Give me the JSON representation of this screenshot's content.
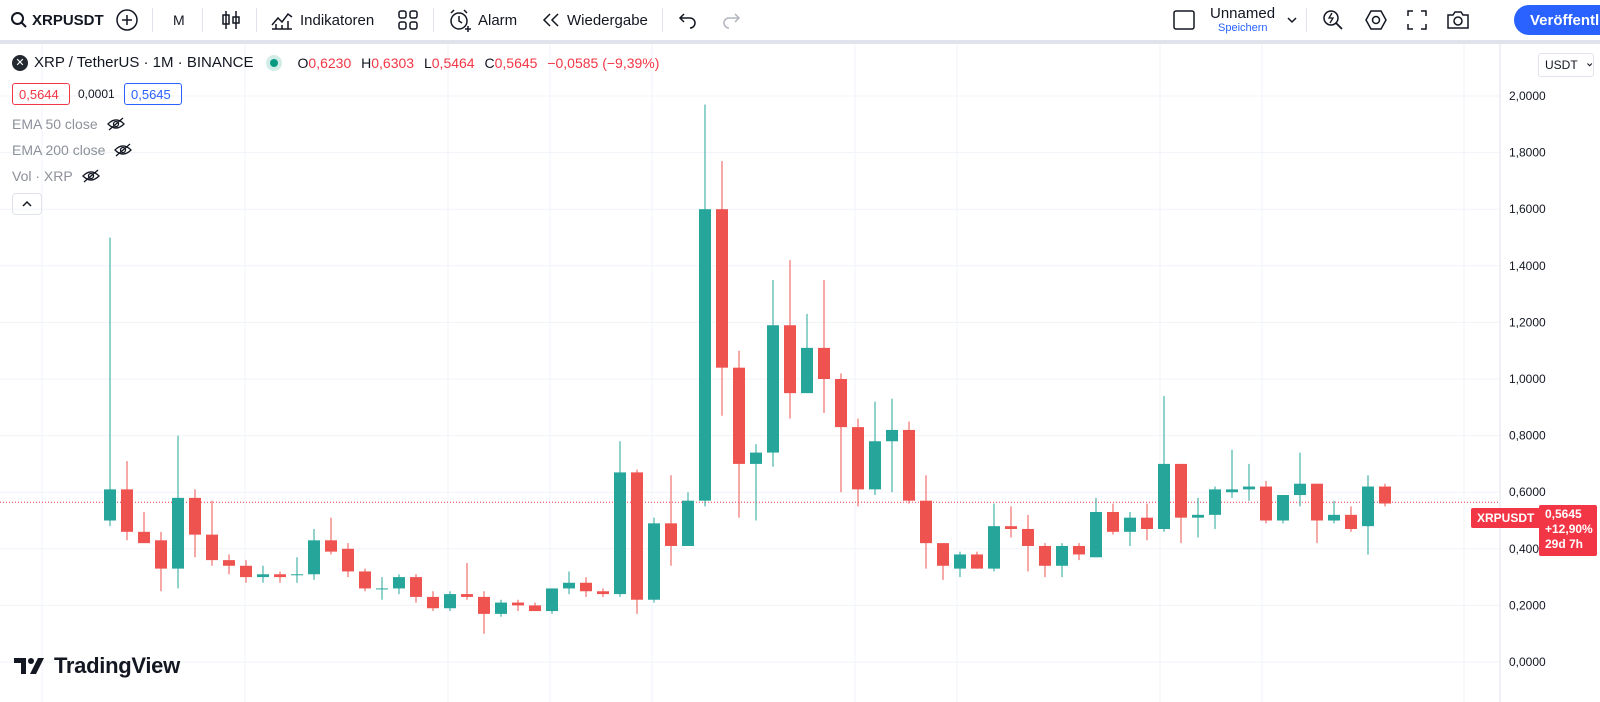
{
  "toolbar": {
    "symbol": "XRPUSDT",
    "interval": "M",
    "indicators_label": "Indikatoren",
    "alarm_label": "Alarm",
    "replay_label": "Wiedergabe",
    "layout_name": "Unnamed",
    "layout_save": "Speichern",
    "publish_label": "Veröffentli"
  },
  "legend": {
    "title": "XRP / TetherUS · 1M · BINANCE",
    "o_label": "O",
    "o_value": "0,6230",
    "h_label": "H",
    "h_value": "0,6303",
    "l_label": "L",
    "l_value": "0,5464",
    "c_label": "C",
    "c_value": "0,5645",
    "change": "−0,0585 (−9,39%)",
    "bid": "0,5644",
    "spread": "0,0001",
    "ask": "0,5645"
  },
  "indicators": [
    {
      "label": "EMA 50 close"
    },
    {
      "label": "EMA 200 close"
    },
    {
      "label": "Vol · XRP"
    }
  ],
  "currency_select": "USDT",
  "watermark": "TradingView",
  "last_price": {
    "symbol": "XRPUSDT",
    "price": "0,5645",
    "change": "+12,90%",
    "countdown": "29d 7h"
  },
  "colors": {
    "up": "#26a69a",
    "down": "#ef5350",
    "accent": "#2962ff"
  },
  "chart_data": {
    "type": "candlestick",
    "y_axis_ticks": [
      "0,0000",
      "0,2000",
      "0,4000",
      "0,6000",
      "0,8000",
      "1,0000",
      "1,2000",
      "1,4000",
      "1,6000",
      "1,8000",
      "2,0000"
    ],
    "ylim": [
      -0.02,
      2.1
    ],
    "last_price_value": 0.5645,
    "candles": [
      {
        "o": 0.5,
        "h": 1.5,
        "l": 0.48,
        "c": 0.61
      },
      {
        "o": 0.61,
        "h": 0.71,
        "l": 0.43,
        "c": 0.46
      },
      {
        "o": 0.46,
        "h": 0.53,
        "l": 0.42,
        "c": 0.42
      },
      {
        "o": 0.43,
        "h": 0.46,
        "l": 0.25,
        "c": 0.33
      },
      {
        "o": 0.33,
        "h": 0.8,
        "l": 0.26,
        "c": 0.58
      },
      {
        "o": 0.58,
        "h": 0.61,
        "l": 0.37,
        "c": 0.45
      },
      {
        "o": 0.45,
        "h": 0.57,
        "l": 0.34,
        "c": 0.36
      },
      {
        "o": 0.36,
        "h": 0.38,
        "l": 0.31,
        "c": 0.34
      },
      {
        "o": 0.34,
        "h": 0.36,
        "l": 0.28,
        "c": 0.3
      },
      {
        "o": 0.3,
        "h": 0.34,
        "l": 0.28,
        "c": 0.31
      },
      {
        "o": 0.31,
        "h": 0.32,
        "l": 0.28,
        "c": 0.3
      },
      {
        "o": 0.31,
        "h": 0.37,
        "l": 0.28,
        "c": 0.31
      },
      {
        "o": 0.31,
        "h": 0.47,
        "l": 0.29,
        "c": 0.43
      },
      {
        "o": 0.43,
        "h": 0.51,
        "l": 0.38,
        "c": 0.39
      },
      {
        "o": 0.4,
        "h": 0.42,
        "l": 0.3,
        "c": 0.32
      },
      {
        "o": 0.32,
        "h": 0.33,
        "l": 0.25,
        "c": 0.26
      },
      {
        "o": 0.26,
        "h": 0.3,
        "l": 0.22,
        "c": 0.26
      },
      {
        "o": 0.26,
        "h": 0.31,
        "l": 0.24,
        "c": 0.3
      },
      {
        "o": 0.3,
        "h": 0.31,
        "l": 0.21,
        "c": 0.23
      },
      {
        "o": 0.23,
        "h": 0.25,
        "l": 0.18,
        "c": 0.19
      },
      {
        "o": 0.19,
        "h": 0.25,
        "l": 0.18,
        "c": 0.24
      },
      {
        "o": 0.24,
        "h": 0.35,
        "l": 0.22,
        "c": 0.23
      },
      {
        "o": 0.23,
        "h": 0.25,
        "l": 0.1,
        "c": 0.17
      },
      {
        "o": 0.17,
        "h": 0.22,
        "l": 0.16,
        "c": 0.21
      },
      {
        "o": 0.21,
        "h": 0.22,
        "l": 0.18,
        "c": 0.2
      },
      {
        "o": 0.2,
        "h": 0.21,
        "l": 0.18,
        "c": 0.18
      },
      {
        "o": 0.18,
        "h": 0.26,
        "l": 0.17,
        "c": 0.26
      },
      {
        "o": 0.26,
        "h": 0.32,
        "l": 0.24,
        "c": 0.28
      },
      {
        "o": 0.28,
        "h": 0.3,
        "l": 0.23,
        "c": 0.25
      },
      {
        "o": 0.25,
        "h": 0.26,
        "l": 0.23,
        "c": 0.24
      },
      {
        "o": 0.24,
        "h": 0.78,
        "l": 0.23,
        "c": 0.67
      },
      {
        "o": 0.67,
        "h": 0.68,
        "l": 0.17,
        "c": 0.22
      },
      {
        "o": 0.22,
        "h": 0.51,
        "l": 0.21,
        "c": 0.49
      },
      {
        "o": 0.49,
        "h": 0.66,
        "l": 0.34,
        "c": 0.41
      },
      {
        "o": 0.41,
        "h": 0.6,
        "l": 0.41,
        "c": 0.57
      },
      {
        "o": 0.57,
        "h": 1.97,
        "l": 0.55,
        "c": 1.6
      },
      {
        "o": 1.6,
        "h": 1.77,
        "l": 0.87,
        "c": 1.04
      },
      {
        "o": 1.04,
        "h": 1.1,
        "l": 0.51,
        "c": 0.7
      },
      {
        "o": 0.7,
        "h": 0.77,
        "l": 0.5,
        "c": 0.74
      },
      {
        "o": 0.74,
        "h": 1.35,
        "l": 0.69,
        "c": 1.19
      },
      {
        "o": 1.19,
        "h": 1.42,
        "l": 0.86,
        "c": 0.95
      },
      {
        "o": 0.95,
        "h": 1.23,
        "l": 0.95,
        "c": 1.11
      },
      {
        "o": 1.11,
        "h": 1.35,
        "l": 0.88,
        "c": 1.0
      },
      {
        "o": 1.0,
        "h": 1.02,
        "l": 0.6,
        "c": 0.83
      },
      {
        "o": 0.83,
        "h": 0.86,
        "l": 0.55,
        "c": 0.61
      },
      {
        "o": 0.61,
        "h": 0.92,
        "l": 0.59,
        "c": 0.78
      },
      {
        "o": 0.78,
        "h": 0.93,
        "l": 0.6,
        "c": 0.82
      },
      {
        "o": 0.82,
        "h": 0.85,
        "l": 0.56,
        "c": 0.57
      },
      {
        "o": 0.57,
        "h": 0.66,
        "l": 0.33,
        "c": 0.42
      },
      {
        "o": 0.42,
        "h": 0.42,
        "l": 0.29,
        "c": 0.34
      },
      {
        "o": 0.33,
        "h": 0.39,
        "l": 0.3,
        "c": 0.38
      },
      {
        "o": 0.38,
        "h": 0.39,
        "l": 0.33,
        "c": 0.33
      },
      {
        "o": 0.33,
        "h": 0.56,
        "l": 0.32,
        "c": 0.48
      },
      {
        "o": 0.48,
        "h": 0.55,
        "l": 0.44,
        "c": 0.47
      },
      {
        "o": 0.47,
        "h": 0.52,
        "l": 0.32,
        "c": 0.41
      },
      {
        "o": 0.41,
        "h": 0.42,
        "l": 0.3,
        "c": 0.34
      },
      {
        "o": 0.34,
        "h": 0.42,
        "l": 0.3,
        "c": 0.41
      },
      {
        "o": 0.41,
        "h": 0.42,
        "l": 0.36,
        "c": 0.38
      },
      {
        "o": 0.37,
        "h": 0.58,
        "l": 0.37,
        "c": 0.53
      },
      {
        "o": 0.53,
        "h": 0.56,
        "l": 0.45,
        "c": 0.46
      },
      {
        "o": 0.46,
        "h": 0.53,
        "l": 0.41,
        "c": 0.51
      },
      {
        "o": 0.51,
        "h": 0.56,
        "l": 0.43,
        "c": 0.47
      },
      {
        "o": 0.47,
        "h": 0.94,
        "l": 0.46,
        "c": 0.7
      },
      {
        "o": 0.7,
        "h": 0.7,
        "l": 0.42,
        "c": 0.51
      },
      {
        "o": 0.51,
        "h": 0.58,
        "l": 0.44,
        "c": 0.52
      },
      {
        "o": 0.52,
        "h": 0.62,
        "l": 0.47,
        "c": 0.61
      },
      {
        "o": 0.6,
        "h": 0.75,
        "l": 0.58,
        "c": 0.61
      },
      {
        "o": 0.61,
        "h": 0.7,
        "l": 0.57,
        "c": 0.62
      },
      {
        "o": 0.62,
        "h": 0.64,
        "l": 0.49,
        "c": 0.5
      },
      {
        "o": 0.5,
        "h": 0.59,
        "l": 0.49,
        "c": 0.59
      },
      {
        "o": 0.59,
        "h": 0.74,
        "l": 0.55,
        "c": 0.63
      },
      {
        "o": 0.63,
        "h": 0.63,
        "l": 0.42,
        "c": 0.5
      },
      {
        "o": 0.5,
        "h": 0.57,
        "l": 0.49,
        "c": 0.52
      },
      {
        "o": 0.52,
        "h": 0.55,
        "l": 0.46,
        "c": 0.47
      },
      {
        "o": 0.48,
        "h": 0.66,
        "l": 0.38,
        "c": 0.62
      },
      {
        "o": 0.62,
        "h": 0.63,
        "l": 0.55,
        "c": 0.56
      }
    ]
  }
}
